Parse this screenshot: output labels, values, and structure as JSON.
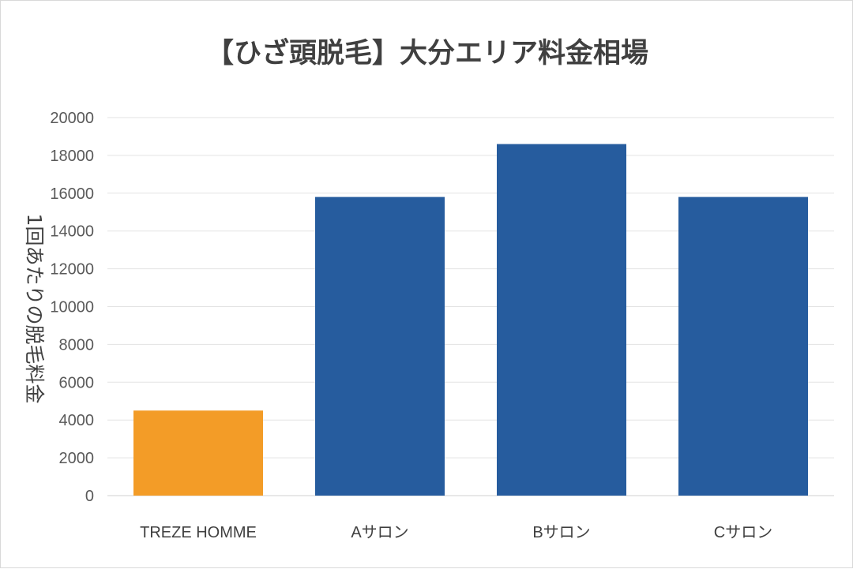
{
  "chart_data": {
    "type": "bar",
    "title": "【ひざ頭脱毛】大分エリア料金相場",
    "xlabel": "",
    "ylabel": "1回あたりの脱毛料金",
    "categories": [
      "TREZE HOMME",
      "Aサロン",
      "Bサロン",
      "Cサロン"
    ],
    "values": [
      4500,
      15800,
      18600,
      15800
    ],
    "bar_colors": [
      "#F39C27",
      "#265C9E",
      "#265C9E",
      "#265C9E"
    ],
    "ylim": [
      0,
      20000
    ],
    "yticks": [
      0,
      2000,
      4000,
      6000,
      8000,
      10000,
      12000,
      14000,
      16000,
      18000,
      20000
    ],
    "grid": true,
    "legend": "none"
  }
}
